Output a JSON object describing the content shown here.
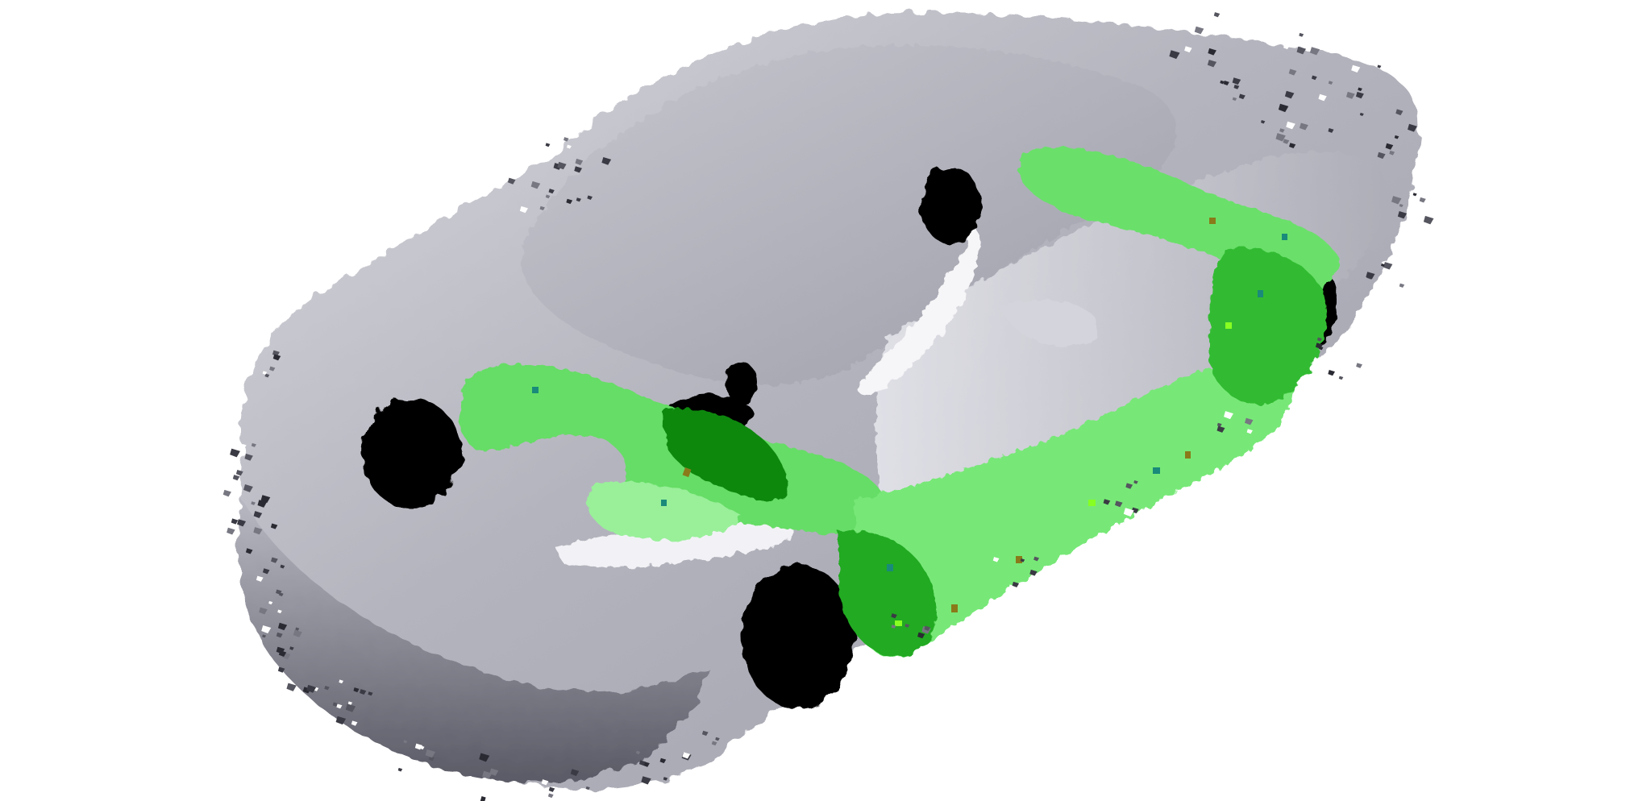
{
  "scene": {
    "subject": "car-point-cloud-render",
    "background_color": "#ffffff",
    "colors": {
      "body_light": "#ececf0",
      "body_mid": "#bcbcc6",
      "body_dark": "#8c8c98",
      "body_shadow": "#3a3a44",
      "hole": "#000000",
      "highlight_light": "#66dd66",
      "highlight_pale": "#88ee88",
      "highlight_dark": "#119911",
      "highlight_deep": "#006600",
      "speck_olive": "#8a7a1a",
      "speck_teal": "#1a8a7a",
      "speck_lime": "#88ff22"
    },
    "visible_regions": [
      "car-body",
      "roof",
      "hood",
      "front-wheel-left",
      "front-wheel-right",
      "rear-wheel-right",
      "headlight-hole",
      "side-mirror-hole",
      "green-segmentation-region"
    ]
  }
}
